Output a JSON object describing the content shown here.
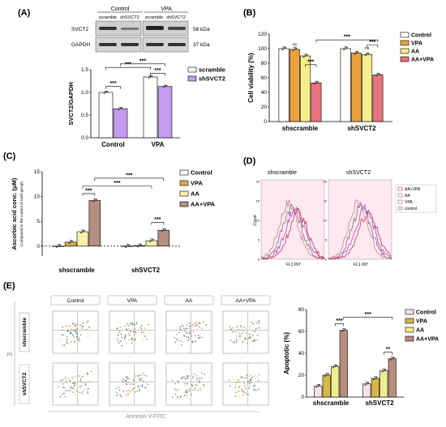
{
  "panel_labels": {
    "A": "(A)",
    "B": "(B)",
    "C": "(C)",
    "D": "(D)",
    "E": "(E)"
  },
  "colors": {
    "scramble": "#ffffff",
    "shSVCT2": "#c59bf0",
    "control": "#ffffff",
    "vpa": "#e9a23b",
    "aa": "#f6ee8a",
    "aavpa": "#e9737e",
    "c_vpa": "#d4b24c",
    "c_aa": "#faf2a8",
    "c_aavpa": "#b58f82"
  },
  "western": {
    "group_control": "Control",
    "group_vpa": "VPA",
    "lane_scramble": "scramble",
    "lane_shSVCT2": "shSVCT2",
    "row_svct2": "SVCT2",
    "row_gapdh": "GAPDH",
    "kda_svct2": "58 kDa",
    "kda_gapdh": "37 kDa"
  },
  "chart_data": [
    {
      "id": "A",
      "type": "bar",
      "categories": [
        "Control",
        "VPA"
      ],
      "series": [
        {
          "name": "scramble",
          "values": [
            1.0,
            1.34
          ]
        },
        {
          "name": "shSVCT2",
          "values": [
            0.64,
            1.13
          ]
        }
      ],
      "ylabel": "SVCT2/GAPDH",
      "ylim": [
        0,
        1.5
      ],
      "yticks": [
        "0.0",
        "0.5",
        "1.0",
        "1.5"
      ],
      "legend": [
        "scramble",
        "shSVCT2"
      ],
      "sig": "***"
    },
    {
      "id": "B",
      "type": "bar",
      "categories": [
        "shscramble",
        "shSVCT2"
      ],
      "series": [
        {
          "name": "Control",
          "values": [
            100,
            100
          ]
        },
        {
          "name": "VPA",
          "values": [
            99,
            94
          ]
        },
        {
          "name": "AA",
          "values": [
            90,
            92
          ]
        },
        {
          "name": "AA+VPA",
          "values": [
            53,
            64
          ]
        }
      ],
      "ylabel": "Cell viability (%)",
      "ylim": [
        0,
        120
      ],
      "yticks": [
        "0",
        "20",
        "40",
        "60",
        "80",
        "100",
        "120"
      ],
      "legend": [
        "Control",
        "VPA",
        "AA",
        "AA+VPA"
      ],
      "sig": "***",
      "ns": "ns"
    },
    {
      "id": "C",
      "type": "bar",
      "categories": [
        "shscramble",
        "shSVCT2"
      ],
      "series": [
        {
          "name": "Control",
          "values": [
            0,
            0
          ]
        },
        {
          "name": "VPA",
          "values": [
            0.8,
            0.1
          ]
        },
        {
          "name": "AA",
          "values": [
            2.9,
            1.1
          ]
        },
        {
          "name": "AA+VPA",
          "values": [
            9.2,
            3.2
          ]
        }
      ],
      "ylabel": "Ascorbic acid conc. (μM)",
      "ylabel2": "(Compared to the control of each group)",
      "ylim": [
        -2,
        15
      ],
      "yticks": [
        "0",
        "5",
        "10",
        "15"
      ],
      "legend": [
        "Control",
        "VPA",
        "AA",
        "AA+VPA"
      ],
      "sig": "***"
    },
    {
      "id": "E",
      "type": "bar",
      "categories": [
        "shscramble",
        "shSVCT2"
      ],
      "series": [
        {
          "name": "Control",
          "values": [
            10,
            12
          ]
        },
        {
          "name": "VPA",
          "values": [
            20,
            17
          ]
        },
        {
          "name": "AA",
          "values": [
            28,
            24
          ]
        },
        {
          "name": "AA+VPA",
          "values": [
            61,
            35
          ]
        }
      ],
      "ylabel": "Apoptotic (%)",
      "ylim": [
        0,
        80
      ],
      "yticks": [
        "0",
        "20",
        "40",
        "60",
        "80"
      ],
      "legend": [
        "Control",
        "VPA",
        "AA",
        "AA+VPA"
      ],
      "sig": "***",
      "sig2": "**"
    }
  ],
  "flow": {
    "left_title": "shscramble",
    "right_title": "shSVCT2",
    "ylabel": "Count",
    "xlabel": "FL1 INT",
    "legend": [
      "AA+VPA",
      "AA",
      "VPA",
      "control"
    ],
    "yticks": [
      "0",
      "5",
      "10",
      "15",
      "20"
    ]
  },
  "scatter": {
    "cols": [
      "Control",
      "VPA",
      "AA",
      "AA+VPA"
    ],
    "rows": [
      "shscramble",
      "shSVCT2"
    ],
    "ylabel": "PI",
    "xlabel": "Annexin V-FITC"
  }
}
